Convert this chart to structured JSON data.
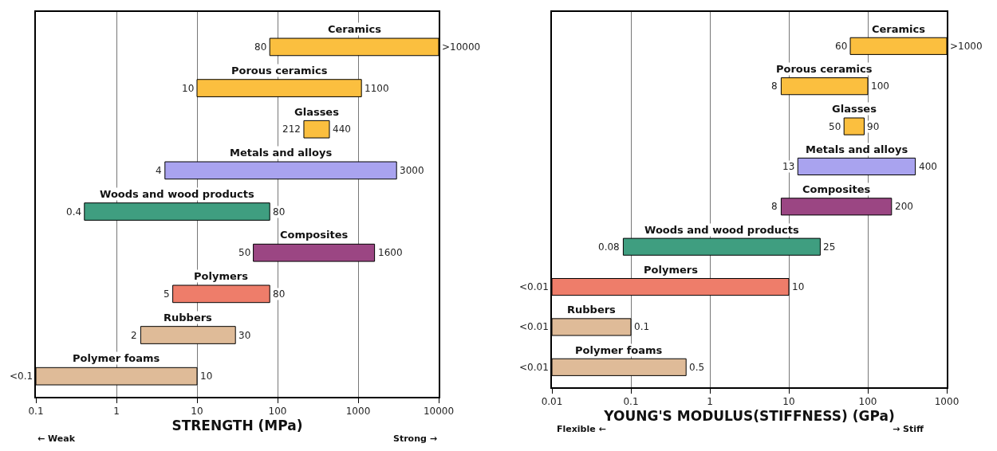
{
  "chart_data": [
    {
      "type": "bar",
      "orientation": "horizontal",
      "xlabel": "STRENGTH (MPa)",
      "log": "x",
      "grid": "x",
      "categories": [
        "Ceramics",
        "Porous ceramics",
        "Glasses",
        "Metals and alloys",
        "Woods and wood products",
        "Composites",
        "Polymers",
        "Rubbers",
        "Polymer foams"
      ],
      "base": [
        80,
        10,
        212,
        4,
        0.4,
        50,
        5,
        2,
        0.1
      ],
      "values": [
        9920,
        1090,
        228,
        2996,
        79.6,
        1550,
        75,
        28,
        9.9
      ],
      "colors": [
        "#fbbf3f",
        "#fbbf3f",
        "#fbbf3f",
        "#a9a3ef",
        "#3f9e80",
        "#9b4683",
        "#ee7d6a",
        "#dfbb98",
        "#dfbb98"
      ],
      "value_labels": [
        ">10000",
        "1100",
        "440",
        "3000",
        "80",
        "1600",
        "80",
        "30",
        "10"
      ],
      "xlim": [
        0.1,
        10000
      ],
      "xticks": [
        0.1,
        1,
        10,
        100,
        1000,
        10000
      ],
      "annotations": [
        "← Weak",
        "Strong →",
        {
          "text": "80",
          "x": 80,
          "y": "Ceramics"
        },
        {
          "text": "10",
          "x": 10,
          "y": "Porous ceramics"
        },
        {
          "text": "212",
          "x": 212,
          "y": "Glasses"
        },
        {
          "text": "4",
          "x": 4,
          "y": "Metals and alloys"
        },
        {
          "text": "0.4",
          "x": 0.4,
          "y": "Woods and wood products"
        },
        {
          "text": "50",
          "x": 50,
          "y": "Composites"
        },
        {
          "text": "5",
          "x": 5,
          "y": "Polymers"
        },
        {
          "text": "2",
          "x": 2,
          "y": "Rubbers"
        },
        {
          "text": "<0.1",
          "x": 0.1,
          "y": "Polymer foams"
        }
      ]
    },
    {
      "type": "bar",
      "orientation": "horizontal",
      "xlabel": "YOUNG'S MODULUS(STIFFNESS) (GPa)",
      "log": "x",
      "grid": "x",
      "categories": [
        "Ceramics",
        "Porous ceramics",
        "Glasses",
        "Metals and alloys",
        "Composites",
        "Woods and wood products",
        "Polymers",
        "Rubbers",
        "Polymer foams"
      ],
      "base": [
        60,
        8,
        50,
        13,
        8,
        0.08,
        0.01,
        0.01,
        0.01
      ],
      "values": [
        940,
        92,
        40,
        387,
        192,
        24.92,
        9.99,
        0.09,
        0.49
      ],
      "colors": [
        "#fbbf3f",
        "#fbbf3f",
        "#fbbf3f",
        "#a9a3ef",
        "#9b4683",
        "#3f9e80",
        "#ee7d6a",
        "#dfbb98",
        "#dfbb98"
      ],
      "value_labels": [
        ">1000",
        "100",
        "90",
        "400",
        "200",
        "25",
        "10",
        "0.1",
        "0.5"
      ],
      "xlim": [
        0.01,
        1000
      ],
      "xticks": [
        0.01,
        0.1,
        1,
        10,
        100,
        1000
      ],
      "annotations": [
        "Flexible ←",
        "→ Stiff",
        {
          "text": "60",
          "x": 60,
          "y": "Ceramics"
        },
        {
          "text": "8",
          "x": 8,
          "y": "Porous ceramics"
        },
        {
          "text": "50",
          "x": 50,
          "y": "Glasses"
        },
        {
          "text": "13",
          "x": 13,
          "y": "Metals and alloys"
        },
        {
          "text": "8",
          "x": 8,
          "y": "Composites"
        },
        {
          "text": "0.08",
          "x": 0.08,
          "y": "Woods and wood products"
        },
        {
          "text": "<0.01",
          "x": 0.01,
          "y": "Polymers"
        },
        {
          "text": "<0.01",
          "x": 0.01,
          "y": "Rubbers"
        },
        {
          "text": "<0.01",
          "x": 0.01,
          "y": "Polymer foams"
        }
      ]
    }
  ]
}
